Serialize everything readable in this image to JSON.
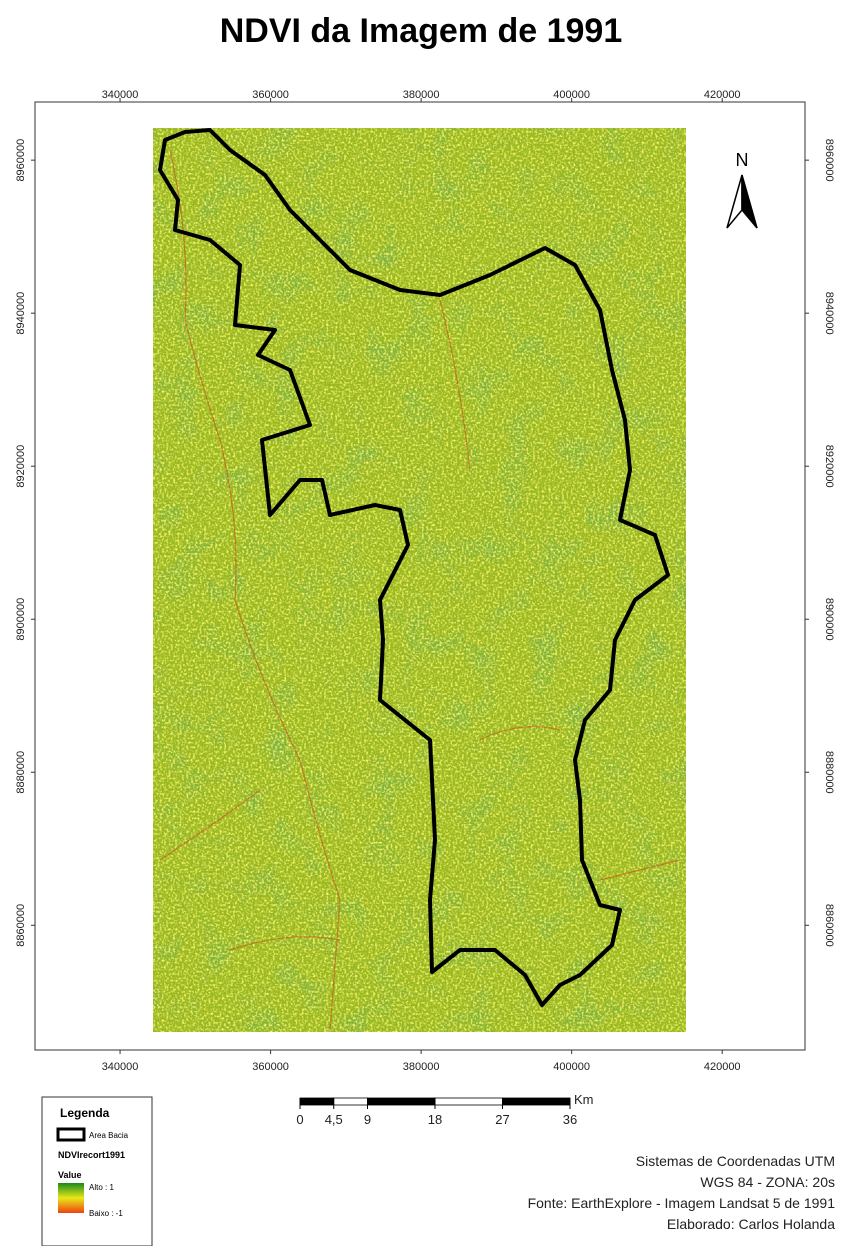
{
  "title": "NDVI da Imagem de 1991",
  "map": {
    "xlim": [
      328700,
      431000
    ],
    "ylim": [
      8843700,
      8967600
    ],
    "xticks": [
      340000,
      360000,
      380000,
      400000,
      420000
    ],
    "yticks": [
      8860000,
      8880000,
      8900000,
      8920000,
      8940000,
      8960000
    ]
  },
  "north_arrow": "N",
  "legend": {
    "title": "Legenda",
    "boundary": "Area Bacia",
    "layer": "NDVIrecort1991",
    "field": "Value",
    "high": "Alto : 1",
    "low": "Baixo : -1"
  },
  "scale_bar": {
    "ticks": [
      0,
      {
        "value": 4.5,
        "label": "4,5"
      },
      9,
      18,
      27,
      36
    ],
    "unit": "Km"
  },
  "credits": [
    "Sistemas de Coordenadas UTM",
    "WGS 84 - ZONA: 20s",
    "Fonte: EarthExplore - Imagem Landsat 5 de 1991",
    "Elaborado: Carlos Holanda"
  ]
}
